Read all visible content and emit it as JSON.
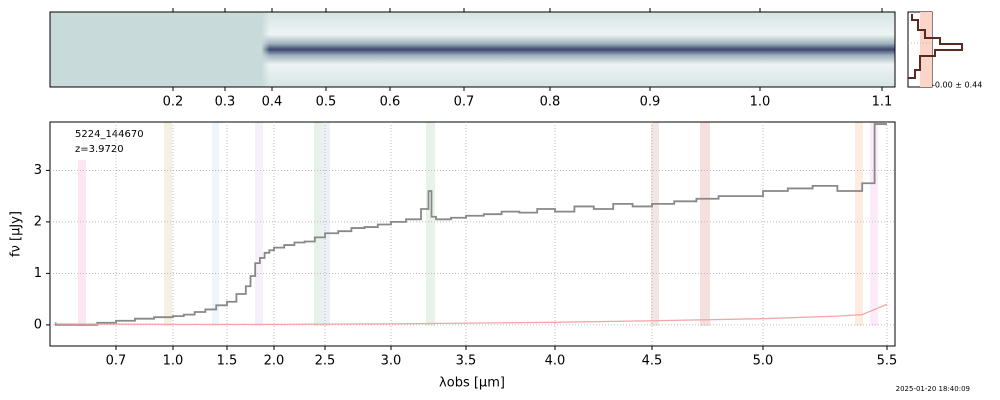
{
  "chart_data": {
    "type": "line",
    "object_id": "5224_144670",
    "redshift_label": "z=3.9720",
    "xlabel": "λobs [μm]",
    "ylabel": "fν [μJy]",
    "noise_label": "-0.00 ± 0.44",
    "timestamp": "2025-01-20 18:40:09",
    "xlim": [
      0.35,
      5.53
    ],
    "ylim": [
      -0.41,
      3.94
    ],
    "xticks": [
      0.7,
      {
        "value": 1.0,
        "label": "1.0"
      },
      1.5,
      {
        "value": 2.0,
        "label": "2.0"
      },
      2.5,
      {
        "value": 3.0,
        "label": "3.0"
      },
      3.5,
      {
        "value": 4.0,
        "label": "4.0"
      },
      4.5,
      {
        "value": 5.0,
        "label": "5.0"
      },
      5.5
    ],
    "yticks": [
      0,
      1,
      2,
      3
    ],
    "x2ticks": [
      0.2,
      0.3,
      0.4,
      0.5,
      0.6,
      0.7,
      0.8,
      0.9,
      {
        "value": 1.0,
        "label": "1.0"
      },
      1.1
    ],
    "grid": true,
    "series": [
      {
        "color": "#888888",
        "step": true,
        "x": [
          0.38,
          0.6,
          0.7,
          0.8,
          0.9,
          1.0,
          1.1,
          1.2,
          1.3,
          1.4,
          1.5,
          1.6,
          1.7,
          1.75,
          1.8,
          1.85,
          1.9,
          1.95,
          2.0,
          2.1,
          2.2,
          2.3,
          2.4,
          2.5,
          2.6,
          2.7,
          2.8,
          2.9,
          3.0,
          3.1,
          3.2,
          3.25,
          3.27,
          3.3,
          3.4,
          3.5,
          3.6,
          3.7,
          3.8,
          3.9,
          4.0,
          4.1,
          4.2,
          4.3,
          4.4,
          4.5,
          4.6,
          4.7,
          4.8,
          4.9,
          5.0,
          5.1,
          5.2,
          5.3,
          5.4,
          5.45,
          5.5
        ],
        "values": [
          0.05,
          0.0,
          0.04,
          0.08,
          0.12,
          0.15,
          0.17,
          0.2,
          0.25,
          0.3,
          0.38,
          0.45,
          0.6,
          0.75,
          0.95,
          1.2,
          1.3,
          1.4,
          1.45,
          1.5,
          1.55,
          1.6,
          1.62,
          1.7,
          1.78,
          1.82,
          1.88,
          1.9,
          1.95,
          2.0,
          2.05,
          2.25,
          2.6,
          2.1,
          2.05,
          2.08,
          2.12,
          2.15,
          2.2,
          2.18,
          2.25,
          2.2,
          2.3,
          2.25,
          2.35,
          2.3,
          2.35,
          2.4,
          2.45,
          2.5,
          2.5,
          2.6,
          2.65,
          2.7,
          2.6,
          2.75,
          3.9
        ]
      },
      {
        "color": "#f4a6a6",
        "step": false,
        "x": [
          0.38,
          1.0,
          2.0,
          3.0,
          4.0,
          4.5,
          5.0,
          5.3,
          5.4,
          5.45,
          5.5
        ],
        "values": [
          0.02,
          0.01,
          0.01,
          0.02,
          0.05,
          0.08,
          0.12,
          0.17,
          0.2,
          0.3,
          0.4
        ]
      }
    ]
  }
}
